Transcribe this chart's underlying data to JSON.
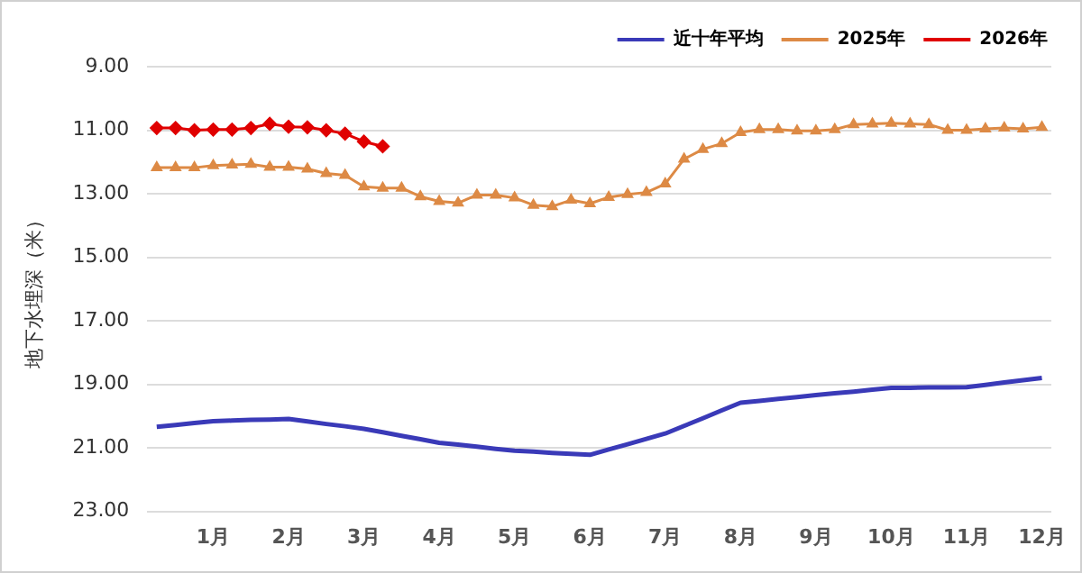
{
  "chart_data": {
    "type": "line",
    "ylabel": "地下水埋深（米）",
    "categories": [
      null,
      null,
      null,
      "1月",
      null,
      null,
      null,
      "2月",
      null,
      null,
      null,
      "3月",
      null,
      null,
      null,
      "4月",
      null,
      null,
      null,
      "5月",
      null,
      null,
      null,
      "6月",
      null,
      null,
      null,
      "7月",
      null,
      null,
      null,
      "8月",
      null,
      null,
      null,
      "9月",
      null,
      null,
      null,
      "10月",
      null,
      null,
      null,
      "11月",
      null,
      null,
      null,
      "12月"
    ],
    "series": [
      {
        "name": "近十年平均",
        "color": "#3a3ab8",
        "marker": "none",
        "values": [
          20.34,
          20.28,
          20.22,
          20.16,
          20.14,
          20.12,
          20.11,
          20.09,
          20.17,
          20.25,
          20.32,
          20.4,
          20.51,
          20.62,
          20.73,
          20.84,
          20.9,
          20.96,
          21.03,
          21.09,
          21.12,
          21.16,
          21.19,
          21.22,
          21.05,
          20.89,
          20.72,
          20.55,
          20.31,
          20.07,
          19.82,
          19.58,
          19.52,
          19.46,
          19.4,
          19.34,
          19.28,
          19.23,
          19.17,
          19.11,
          19.11,
          19.1,
          19.1,
          19.09,
          19.02,
          18.94,
          18.87,
          18.8
        ]
      },
      {
        "name": "2025年",
        "color": "#dd8a45",
        "marker": "triangle",
        "values": [
          12.18,
          12.18,
          12.18,
          12.11,
          12.09,
          12.07,
          12.16,
          12.16,
          12.22,
          12.36,
          12.42,
          12.78,
          12.82,
          12.82,
          13.09,
          13.24,
          13.29,
          13.04,
          13.04,
          13.13,
          13.36,
          13.4,
          13.2,
          13.31,
          13.11,
          13.02,
          12.96,
          12.69,
          11.91,
          11.6,
          11.42,
          11.07,
          10.98,
          10.98,
          11.02,
          11.02,
          10.98,
          10.82,
          10.8,
          10.78,
          10.8,
          10.82,
          11.0,
          11.0,
          10.96,
          10.93,
          10.96,
          10.91
        ]
      },
      {
        "name": "2026年",
        "color": "#e00000",
        "marker": "diamond",
        "values": [
          10.93,
          10.93,
          11.0,
          10.98,
          10.98,
          10.93,
          10.8,
          10.89,
          10.91,
          11.0,
          11.11,
          11.36,
          11.51,
          null,
          null,
          null,
          null,
          null,
          null,
          null,
          null,
          null,
          null,
          null,
          null,
          null,
          null,
          null,
          null,
          null,
          null,
          null,
          null,
          null,
          null,
          null,
          null,
          null,
          null,
          null,
          null,
          null,
          null,
          null,
          null,
          null,
          null,
          null
        ]
      }
    ],
    "ylim": [
      23,
      9
    ],
    "yticks": [
      {
        "value": 9,
        "label": "9.00"
      },
      {
        "value": 11,
        "label": "11.00"
      },
      {
        "value": 13,
        "label": "13.00"
      },
      {
        "value": 15,
        "label": "15.00"
      },
      {
        "value": 17,
        "label": "17.00"
      },
      {
        "value": 19,
        "label": "19.00"
      },
      {
        "value": 21,
        "label": "21.00"
      },
      {
        "value": 23,
        "label": "23.00"
      }
    ],
    "grid": "y",
    "legend": "top right"
  }
}
